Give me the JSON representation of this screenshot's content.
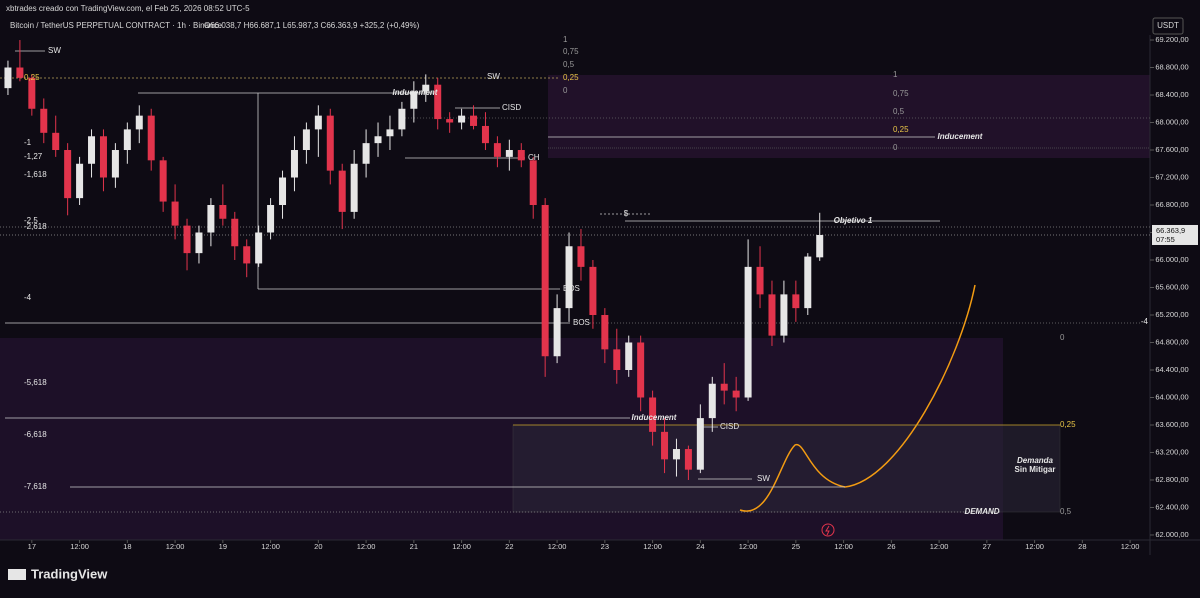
{
  "header": {
    "credit": "xbtrades creado con TradingView.com, el Feb 25, 2026 08:52 UTC-5",
    "symbol": "Bitcoin / TetherUS PERPETUAL CONTRACT · 1h · Binance",
    "ohlc": "O66.038,7 H66.687,1 L65.987,3 C66.363,9 +325,2 (+0,49%)",
    "currency": "USDT"
  },
  "brand": "TradingView",
  "chart_data": {
    "type": "candlestick",
    "x": [
      -6,
      -3,
      0,
      3,
      6,
      9,
      12,
      15,
      18,
      21,
      24,
      27,
      30,
      33,
      36,
      39,
      42,
      45,
      48,
      51,
      54,
      57,
      60,
      63,
      66,
      69,
      72,
      75,
      78,
      81,
      84,
      87,
      90,
      93,
      96,
      99,
      102,
      105,
      108,
      111,
      114,
      117,
      120,
      123,
      126,
      129,
      132,
      135,
      138,
      141,
      144,
      147,
      150,
      153,
      156,
      159,
      162,
      165,
      168,
      171,
      174,
      177,
      180,
      183,
      186,
      189,
      192,
      195,
      198
    ],
    "open": [
      68500,
      68800,
      68650,
      68200,
      67850,
      67600,
      66900,
      67400,
      67800,
      67200,
      67600,
      67900,
      68100,
      67450,
      66850,
      66500,
      66100,
      66400,
      66800,
      66600,
      66200,
      65950,
      66400,
      66800,
      67200,
      67600,
      67900,
      68100,
      67300,
      66700,
      67400,
      67700,
      67800,
      67900,
      68200,
      68450,
      68550,
      68050,
      68000,
      68100,
      67950,
      67700,
      67500,
      67600,
      67450,
      66800,
      64600,
      65300,
      66200,
      65900,
      65200,
      64700,
      64400,
      64800,
      64000,
      63500,
      63100,
      63250,
      62950,
      63700,
      64200,
      64100,
      64000,
      65900,
      65500,
      64900,
      65500,
      65300,
      66038.7
    ],
    "high": [
      68900,
      69200,
      68700,
      68350,
      68100,
      67700,
      67500,
      67900,
      67900,
      67700,
      68000,
      68250,
      68200,
      67500,
      67100,
      66600,
      66500,
      66900,
      67100,
      66700,
      66300,
      66500,
      66900,
      67300,
      67800,
      68000,
      68250,
      68200,
      67400,
      67600,
      67900,
      68000,
      68100,
      68300,
      68600,
      68700,
      68650,
      68150,
      68200,
      68250,
      68150,
      67800,
      67750,
      67700,
      67500,
      66900,
      65500,
      66400,
      66450,
      66000,
      65300,
      65000,
      64900,
      64900,
      64100,
      63700,
      63400,
      63300,
      63900,
      64300,
      64500,
      64300,
      66300,
      66200,
      65700,
      65700,
      65700,
      66100,
      66687.1
    ],
    "low": [
      68400,
      68600,
      68100,
      67700,
      67500,
      66650,
      66800,
      67200,
      67000,
      67050,
      67400,
      67700,
      67300,
      66700,
      66300,
      65850,
      65950,
      66200,
      66500,
      66000,
      65750,
      65900,
      66300,
      66600,
      67000,
      67400,
      67500,
      67100,
      66450,
      66600,
      67200,
      67500,
      67600,
      67800,
      68000,
      68300,
      67900,
      67850,
      67900,
      67900,
      67600,
      67350,
      67300,
      67350,
      66600,
      64300,
      64500,
      65100,
      65700,
      65000,
      64500,
      64200,
      64300,
      63800,
      63300,
      62900,
      62850,
      62800,
      62900,
      63500,
      63900,
      63800,
      63950,
      65300,
      64750,
      64800,
      65100,
      65200,
      65987.3
    ],
    "close": [
      68800,
      68650,
      68200,
      67850,
      67600,
      66900,
      67400,
      67800,
      67200,
      67600,
      67900,
      68100,
      67450,
      66850,
      66500,
      66100,
      66400,
      66800,
      66600,
      66200,
      65950,
      66400,
      66800,
      67200,
      67600,
      67900,
      68100,
      67300,
      66700,
      67400,
      67700,
      67800,
      67900,
      68200,
      68450,
      68550,
      68050,
      68000,
      68100,
      67950,
      67700,
      67500,
      67600,
      67450,
      66800,
      64600,
      65300,
      66200,
      65900,
      65200,
      64700,
      64400,
      64800,
      64000,
      63500,
      63100,
      63250,
      62950,
      63700,
      64200,
      64100,
      64000,
      65900,
      65500,
      64900,
      65500,
      65300,
      66050,
      66363.9
    ],
    "up_color": "#e6e6e6",
    "down_color": "#e2344c",
    "xlim": [
      -8,
      281
    ],
    "ylim": [
      61927,
      69273
    ],
    "xticks": [
      {
        "value": 0,
        "label": "17"
      },
      {
        "value": 12,
        "label": "12:00"
      },
      {
        "value": 24,
        "label": "18"
      },
      {
        "value": 36,
        "label": "12:00"
      },
      {
        "value": 48,
        "label": "19"
      },
      {
        "value": 60,
        "label": "12:00"
      },
      {
        "value": 72,
        "label": "20"
      },
      {
        "value": 84,
        "label": "12:00"
      },
      {
        "value": 96,
        "label": "21"
      },
      {
        "value": 108,
        "label": "12:00"
      },
      {
        "value": 120,
        "label": "22"
      },
      {
        "value": 132,
        "label": "12:00"
      },
      {
        "value": 144,
        "label": "23"
      },
      {
        "value": 156,
        "label": "12:00"
      },
      {
        "value": 168,
        "label": "24"
      },
      {
        "value": 180,
        "label": "12:00"
      },
      {
        "value": 192,
        "label": "25"
      },
      {
        "value": 204,
        "label": "12:00"
      },
      {
        "value": 216,
        "label": "26"
      },
      {
        "value": 228,
        "label": "12:00"
      },
      {
        "value": 240,
        "label": "27"
      },
      {
        "value": 252,
        "label": "12:00"
      },
      {
        "value": 264,
        "label": "28"
      },
      {
        "value": 276,
        "label": "12:00"
      }
    ],
    "yticks": [
      {
        "value": 69200,
        "label": "69.200,00"
      },
      {
        "value": 68800,
        "label": "68.800,00"
      },
      {
        "value": 68400,
        "label": "68.400,00"
      },
      {
        "value": 68000,
        "label": "68.000,00"
      },
      {
        "value": 67600,
        "label": "67.600,00"
      },
      {
        "value": 67200,
        "label": "67.200,00"
      },
      {
        "value": 66800,
        "label": "66.800,00"
      },
      {
        "value": 66400,
        "label": "66.400,00"
      },
      {
        "value": 66000,
        "label": "66.000,00"
      },
      {
        "value": 65600,
        "label": "65.600,00"
      },
      {
        "value": 65200,
        "label": "65.200,00"
      },
      {
        "value": 64800,
        "label": "64.800,00"
      },
      {
        "value": 64400,
        "label": "64.400,00"
      },
      {
        "value": 64000,
        "label": "64.000,00"
      },
      {
        "value": 63600,
        "label": "63.600,00"
      },
      {
        "value": 63200,
        "label": "63.200,00"
      },
      {
        "value": 62800,
        "label": "62.800,00"
      },
      {
        "value": 62400,
        "label": "62.400,00"
      },
      {
        "value": 62000,
        "label": "62.000,00"
      }
    ],
    "last_price": {
      "value": 66363.9,
      "label": "66.363,9"
    },
    "countdown": "07:55",
    "annotations": [
      "SW",
      "SW",
      "Inducement",
      "CISD",
      "CH",
      "Inducement",
      "$",
      "Objetivo 1",
      "BOS",
      "BOS",
      "Inducement",
      "CISD",
      "SW",
      "Demanda",
      "Sin Mitigar",
      "DEMAND",
      "1",
      "0,75",
      "0,5",
      "0,25",
      "0",
      "1",
      "0,75",
      "0,5",
      "0,25",
      "0",
      "0,25",
      "-1",
      "-1,27",
      "-1,618",
      "-2,5",
      "-2,618",
      "-4",
      "-5,618",
      "-6,618",
      "-7,618",
      "-4",
      "0",
      "0,25",
      "0,5"
    ]
  }
}
